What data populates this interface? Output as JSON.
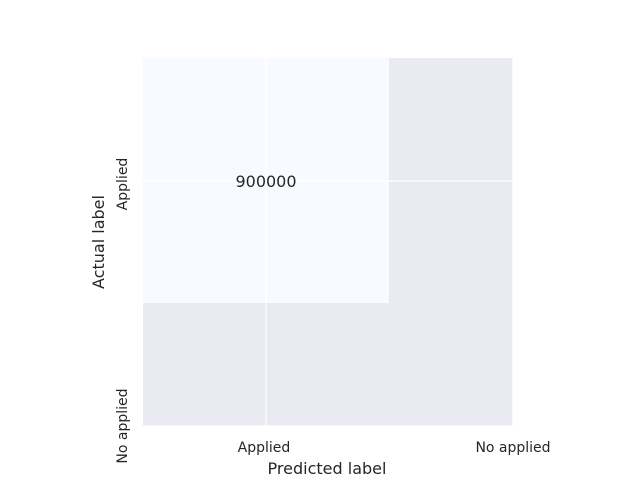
{
  "chart_data": {
    "type": "heatmap",
    "title": "",
    "xlabel": "Predicted label",
    "ylabel": "Actual label",
    "x_categories": [
      "Applied",
      "No applied"
    ],
    "y_categories": [
      "Applied",
      "No applied"
    ],
    "cells": [
      {
        "actual": "Applied",
        "predicted": "Applied",
        "value": 900000,
        "label": "900000",
        "color": "#f7fbff"
      }
    ],
    "cell_colors": {
      "filled": "#f7fbff",
      "empty": "#eaeaf2"
    },
    "gridlines": true,
    "grid_color": "#ffffff"
  }
}
